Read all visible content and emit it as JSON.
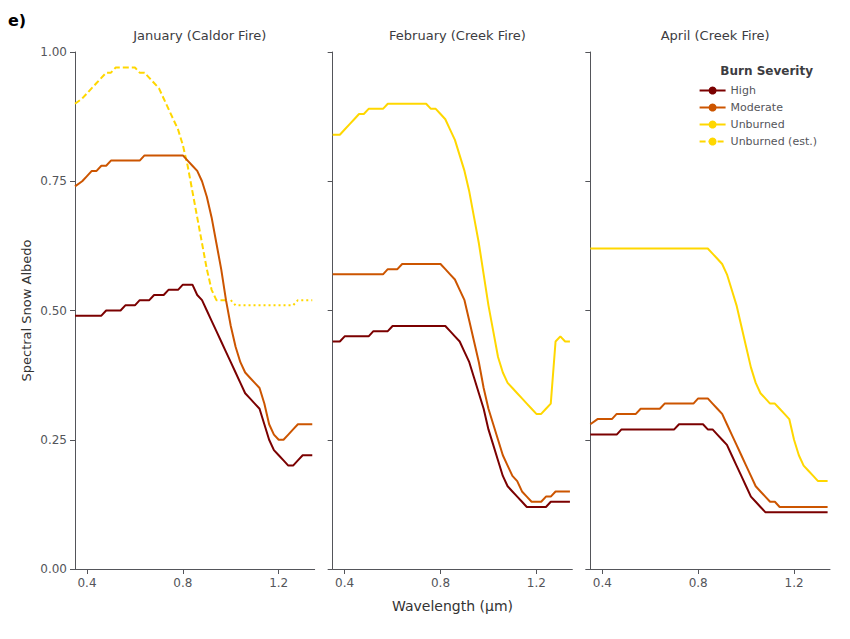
{
  "chart_data": [
    {
      "type": "line",
      "title": "January (Caldor Fire)",
      "ylabel": "Spectral Snow Albedo",
      "annotations": [
        "e)"
      ],
      "x": [
        0.35,
        0.38,
        0.4,
        0.42,
        0.44,
        0.46,
        0.48,
        0.5,
        0.52,
        0.54,
        0.56,
        0.58,
        0.6,
        0.62,
        0.64,
        0.66,
        0.68,
        0.7,
        0.72,
        0.74,
        0.76,
        0.78,
        0.8,
        0.82,
        0.84,
        0.86,
        0.88,
        0.9,
        0.92,
        0.94,
        0.96,
        0.98,
        1.0,
        1.02,
        1.04,
        1.06,
        1.08,
        1.1,
        1.12,
        1.14,
        1.16,
        1.18,
        1.2,
        1.22,
        1.24,
        1.26,
        1.28,
        1.3,
        1.32,
        1.34
      ],
      "series": [
        {
          "name": "Unburned (est.)",
          "color": "#FFD700",
          "line_style": "dashed",
          "values": [
            0.9,
            0.91,
            0.92,
            0.93,
            0.94,
            0.95,
            0.96,
            0.96,
            0.97,
            0.97,
            0.97,
            0.97,
            0.97,
            0.96,
            0.96,
            0.95,
            0.94,
            0.93,
            0.91,
            0.89,
            0.87,
            0.85,
            0.82,
            0.78,
            0.73,
            0.68,
            0.63,
            0.58,
            0.54,
            0.52,
            0.52,
            0.52,
            null,
            null,
            null,
            null,
            null,
            null,
            null,
            null,
            null,
            null,
            null,
            null,
            null,
            null,
            null,
            null,
            null,
            null
          ]
        },
        {
          "name": "Unburned (est.)",
          "color": "#FFD700",
          "line_style": "dotted",
          "values": [
            null,
            null,
            null,
            null,
            null,
            null,
            null,
            null,
            null,
            null,
            null,
            null,
            null,
            null,
            null,
            null,
            null,
            null,
            null,
            null,
            null,
            null,
            null,
            null,
            null,
            null,
            null,
            null,
            null,
            null,
            null,
            null,
            0.52,
            0.51,
            0.51,
            0.51,
            0.51,
            0.51,
            0.51,
            0.51,
            0.51,
            0.51,
            0.51,
            0.51,
            0.51,
            0.51,
            0.52,
            0.52,
            0.52,
            0.52
          ]
        },
        {
          "name": "Moderate",
          "color": "#CC5500",
          "line_style": "solid",
          "values": [
            0.74,
            0.75,
            0.76,
            0.77,
            0.77,
            0.78,
            0.78,
            0.79,
            0.79,
            0.79,
            0.79,
            0.79,
            0.79,
            0.79,
            0.8,
            0.8,
            0.8,
            0.8,
            0.8,
            0.8,
            0.8,
            0.8,
            0.8,
            0.79,
            0.78,
            0.77,
            0.75,
            0.72,
            0.68,
            0.63,
            0.58,
            0.52,
            0.47,
            0.43,
            0.4,
            0.38,
            0.37,
            0.36,
            0.35,
            0.32,
            0.28,
            0.26,
            0.25,
            0.25,
            0.26,
            0.27,
            0.28,
            0.28,
            0.28,
            0.28
          ]
        },
        {
          "name": "High",
          "color": "#7B0000",
          "line_style": "solid",
          "values": [
            0.49,
            0.49,
            0.49,
            0.49,
            0.49,
            0.49,
            0.5,
            0.5,
            0.5,
            0.5,
            0.51,
            0.51,
            0.51,
            0.52,
            0.52,
            0.52,
            0.53,
            0.53,
            0.53,
            0.54,
            0.54,
            0.54,
            0.55,
            0.55,
            0.55,
            0.53,
            0.52,
            0.5,
            0.48,
            0.46,
            0.44,
            0.42,
            0.4,
            0.38,
            0.36,
            0.34,
            0.33,
            0.32,
            0.31,
            0.28,
            0.25,
            0.23,
            0.22,
            0.21,
            0.2,
            0.2,
            0.21,
            0.22,
            0.22,
            0.22
          ]
        }
      ],
      "xlim": [
        0.35,
        1.35
      ],
      "xticks": [
        0.4,
        0.8,
        1.2
      ],
      "ylim": [
        0.0,
        1.0
      ],
      "yticks": [
        {
          "value": 0.0,
          "label": "0.00"
        },
        {
          "value": 0.25,
          "label": "0.25"
        },
        {
          "value": 0.5,
          "label": "0.50"
        },
        {
          "value": 0.75,
          "label": "0.75"
        },
        {
          "value": 1.0,
          "label": "1.00"
        }
      ],
      "grid": false
    },
    {
      "type": "line",
      "title": "February (Creek Fire)",
      "xlabel": "Wavelength (μm)",
      "x": [
        0.35,
        0.38,
        0.4,
        0.42,
        0.44,
        0.46,
        0.48,
        0.5,
        0.52,
        0.54,
        0.56,
        0.58,
        0.6,
        0.62,
        0.64,
        0.66,
        0.68,
        0.7,
        0.72,
        0.74,
        0.76,
        0.78,
        0.8,
        0.82,
        0.84,
        0.86,
        0.88,
        0.9,
        0.92,
        0.94,
        0.96,
        0.98,
        1.0,
        1.02,
        1.04,
        1.06,
        1.08,
        1.1,
        1.12,
        1.14,
        1.16,
        1.18,
        1.2,
        1.22,
        1.24,
        1.26,
        1.28,
        1.3,
        1.32,
        1.34
      ],
      "series": [
        {
          "name": "Unburned",
          "color": "#FFD700",
          "line_style": "solid",
          "values": [
            0.84,
            0.84,
            0.85,
            0.86,
            0.87,
            0.88,
            0.88,
            0.89,
            0.89,
            0.89,
            0.89,
            0.9,
            0.9,
            0.9,
            0.9,
            0.9,
            0.9,
            0.9,
            0.9,
            0.9,
            0.89,
            0.89,
            0.88,
            0.87,
            0.85,
            0.83,
            0.8,
            0.77,
            0.73,
            0.68,
            0.63,
            0.57,
            0.51,
            0.46,
            0.41,
            0.38,
            0.36,
            0.35,
            0.34,
            0.33,
            0.32,
            0.31,
            0.3,
            0.3,
            0.31,
            0.32,
            0.44,
            0.45,
            0.44,
            0.44
          ]
        },
        {
          "name": "Moderate",
          "color": "#CC5500",
          "line_style": "solid",
          "values": [
            0.57,
            0.57,
            0.57,
            0.57,
            0.57,
            0.57,
            0.57,
            0.57,
            0.57,
            0.57,
            0.57,
            0.58,
            0.58,
            0.58,
            0.59,
            0.59,
            0.59,
            0.59,
            0.59,
            0.59,
            0.59,
            0.59,
            0.59,
            0.58,
            0.57,
            0.56,
            0.54,
            0.52,
            0.48,
            0.44,
            0.4,
            0.35,
            0.31,
            0.28,
            0.25,
            0.22,
            0.2,
            0.18,
            0.17,
            0.15,
            0.14,
            0.13,
            0.13,
            0.13,
            0.14,
            0.14,
            0.15,
            0.15,
            0.15,
            0.15
          ]
        },
        {
          "name": "High",
          "color": "#7B0000",
          "line_style": "solid",
          "values": [
            0.44,
            0.44,
            0.45,
            0.45,
            0.45,
            0.45,
            0.45,
            0.45,
            0.46,
            0.46,
            0.46,
            0.46,
            0.47,
            0.47,
            0.47,
            0.47,
            0.47,
            0.47,
            0.47,
            0.47,
            0.47,
            0.47,
            0.47,
            0.47,
            0.46,
            0.45,
            0.44,
            0.42,
            0.4,
            0.37,
            0.34,
            0.31,
            0.27,
            0.24,
            0.21,
            0.18,
            0.16,
            0.15,
            0.14,
            0.13,
            0.12,
            0.12,
            0.12,
            0.12,
            0.12,
            0.13,
            0.13,
            0.13,
            0.13,
            0.13
          ]
        }
      ],
      "xlim": [
        0.35,
        1.35
      ],
      "xticks": [
        0.4,
        0.8,
        1.2
      ],
      "ylim": [
        0.0,
        1.0
      ],
      "yticks": [
        0.0,
        0.25,
        0.5,
        0.75,
        1.0
      ],
      "tick_labels": "x",
      "grid": false
    },
    {
      "type": "line",
      "title": "April (Creek Fire)",
      "x": [
        0.35,
        0.38,
        0.4,
        0.42,
        0.44,
        0.46,
        0.48,
        0.5,
        0.52,
        0.54,
        0.56,
        0.58,
        0.6,
        0.62,
        0.64,
        0.66,
        0.68,
        0.7,
        0.72,
        0.74,
        0.76,
        0.78,
        0.8,
        0.82,
        0.84,
        0.86,
        0.88,
        0.9,
        0.92,
        0.94,
        0.96,
        0.98,
        1.0,
        1.02,
        1.04,
        1.06,
        1.08,
        1.1,
        1.12,
        1.14,
        1.16,
        1.18,
        1.2,
        1.22,
        1.24,
        1.26,
        1.28,
        1.3,
        1.32,
        1.34
      ],
      "series": [
        {
          "name": "Unburned",
          "color": "#FFD700",
          "line_style": "solid",
          "values": [
            0.62,
            0.62,
            0.62,
            0.62,
            0.62,
            0.62,
            0.62,
            0.62,
            0.62,
            0.62,
            0.62,
            0.62,
            0.62,
            0.62,
            0.62,
            0.62,
            0.62,
            0.62,
            0.62,
            0.62,
            0.62,
            0.62,
            0.62,
            0.62,
            0.62,
            0.61,
            0.6,
            0.59,
            0.57,
            0.54,
            0.51,
            0.47,
            0.43,
            0.39,
            0.36,
            0.34,
            0.33,
            0.32,
            0.32,
            0.31,
            0.3,
            0.29,
            0.25,
            0.22,
            0.2,
            0.19,
            0.18,
            0.17,
            0.17,
            0.17
          ]
        },
        {
          "name": "Moderate",
          "color": "#CC5500",
          "line_style": "solid",
          "values": [
            0.28,
            0.29,
            0.29,
            0.29,
            0.29,
            0.3,
            0.3,
            0.3,
            0.3,
            0.3,
            0.31,
            0.31,
            0.31,
            0.31,
            0.31,
            0.32,
            0.32,
            0.32,
            0.32,
            0.32,
            0.32,
            0.32,
            0.33,
            0.33,
            0.33,
            0.32,
            0.31,
            0.3,
            0.28,
            0.26,
            0.24,
            0.22,
            0.2,
            0.18,
            0.16,
            0.15,
            0.14,
            0.13,
            0.13,
            0.12,
            0.12,
            0.12,
            0.12,
            0.12,
            0.12,
            0.12,
            0.12,
            0.12,
            0.12,
            0.12
          ]
        },
        {
          "name": "High",
          "color": "#7B0000",
          "line_style": "solid",
          "values": [
            0.26,
            0.26,
            0.26,
            0.26,
            0.26,
            0.26,
            0.27,
            0.27,
            0.27,
            0.27,
            0.27,
            0.27,
            0.27,
            0.27,
            0.27,
            0.27,
            0.27,
            0.27,
            0.28,
            0.28,
            0.28,
            0.28,
            0.28,
            0.28,
            0.27,
            0.27,
            0.26,
            0.25,
            0.24,
            0.22,
            0.2,
            0.18,
            0.16,
            0.14,
            0.13,
            0.12,
            0.11,
            0.11,
            0.11,
            0.11,
            0.11,
            0.11,
            0.11,
            0.11,
            0.11,
            0.11,
            0.11,
            0.11,
            0.11,
            0.11
          ]
        }
      ],
      "xlim": [
        0.35,
        1.35
      ],
      "xticks": [
        0.4,
        0.8,
        1.2
      ],
      "ylim": [
        0.0,
        1.0
      ],
      "yticks": [
        0.0,
        0.25,
        0.5,
        0.75,
        1.0
      ],
      "tick_labels": "x",
      "grid": false,
      "legend": "upper right",
      "legend_title": "Burn Severity",
      "legend_entries": [
        "High",
        "Moderate",
        "Unburned",
        "Unburned (est.)"
      ]
    }
  ]
}
